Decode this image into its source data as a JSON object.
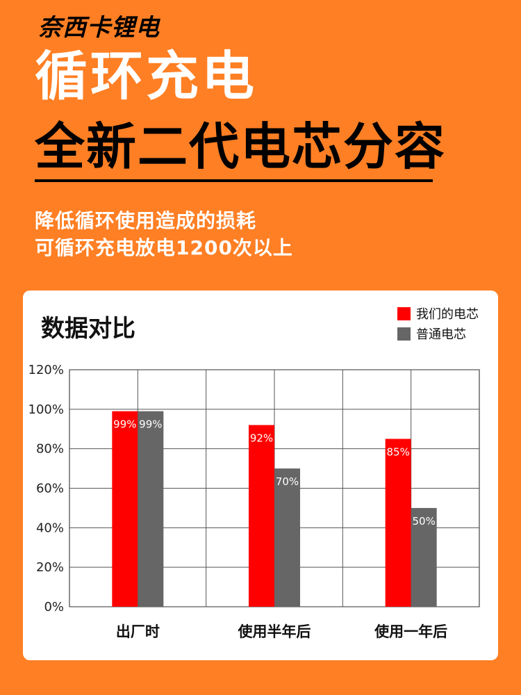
{
  "brand": "奈西卡锂电",
  "title_main": "循环充电",
  "title_sub": "全新二代电芯分容",
  "subtitle_lines": [
    "降低循环使用造成的损耗",
    "可循环充电放电1200次以上"
  ],
  "chart_data": {
    "type": "bar",
    "title": "数据对比",
    "categories": [
      "出厂时",
      "使用半年后",
      "使用一年后"
    ],
    "series": [
      {
        "name": "我们的电芯",
        "values": [
          99,
          92,
          85
        ],
        "color": "#ff0000"
      },
      {
        "name": "普通电芯",
        "values": [
          99,
          70,
          50
        ],
        "color": "#666666"
      }
    ],
    "y_ticks": [
      0,
      20,
      40,
      60,
      80,
      100,
      120
    ],
    "y_tick_labels": [
      "0%",
      "20%",
      "40%",
      "60%",
      "80%",
      "100%",
      "120%"
    ],
    "data_labels": [
      [
        "99%",
        "92%",
        "85%"
      ],
      [
        "99%",
        "70%",
        "50%"
      ]
    ],
    "ylim": [
      0,
      120
    ],
    "grid": true,
    "legend_position": "top-right"
  }
}
